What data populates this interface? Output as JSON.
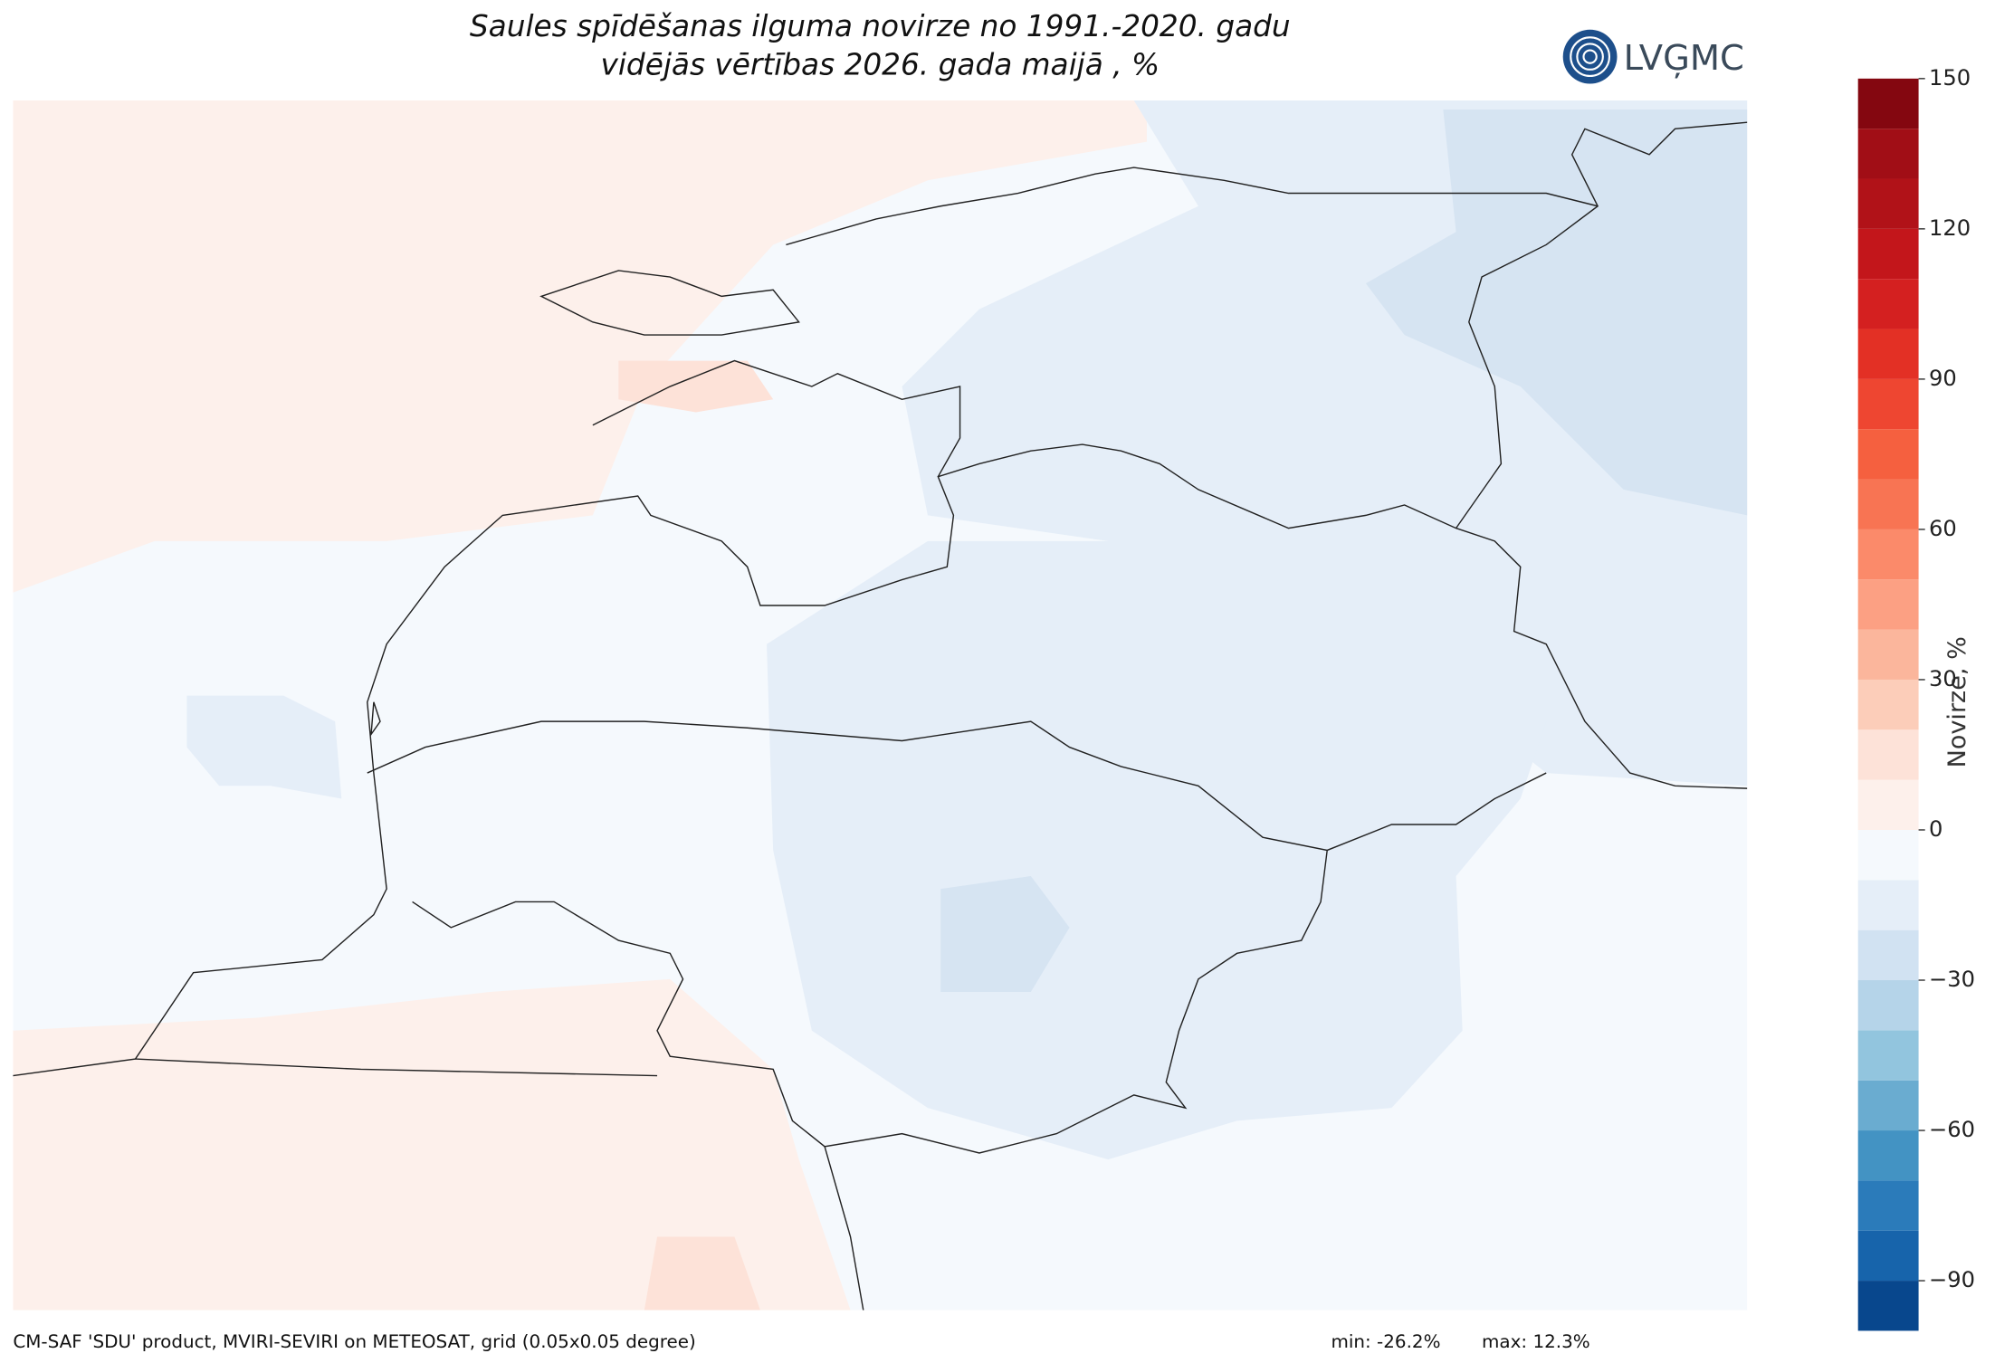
{
  "title_lines": [
    "Saules spīdēšanas ilguma novirze no 1991.-2020. gadu",
    "vidējās vērtības 2026. gada maijā , %"
  ],
  "logo": "LVĢMC",
  "colorbar": {
    "label": "Novirze, %",
    "lim": [
      -100,
      150
    ],
    "levels": [
      -100,
      -90,
      -80,
      -70,
      -60,
      -50,
      -40,
      -30,
      -20,
      -10,
      0,
      10,
      20,
      30,
      40,
      50,
      60,
      70,
      80,
      90,
      100,
      110,
      120,
      130,
      140,
      150
    ],
    "colors": [
      "#08478d",
      "#1764ab",
      "#2b7bba",
      "#4393c3",
      "#6aacd0",
      "#92c5de",
      "#b5d4e9",
      "#d1e2f2",
      "#e5eef8",
      "#f5f9fd",
      "#fdf0eb",
      "#fde2d8",
      "#fccdb9",
      "#fbb69c",
      "#fca083",
      "#fb8a6a",
      "#f87453",
      "#f5603f",
      "#ee4631",
      "#e33025",
      "#d42020",
      "#c3161b",
      "#b11218",
      "#a10e16",
      "#840710"
    ],
    "ticks": [
      150,
      120,
      90,
      60,
      30,
      0,
      {
        "value": -30,
        "label": "−30"
      },
      {
        "value": -60,
        "label": "−60"
      },
      {
        "value": -90,
        "label": "−90"
      }
    ]
  },
  "footer": {
    "source": "CM-SAF 'SDU' product, MVIRI-SEVIRI on METEOSAT, grid (0.05x0.05 degree)",
    "min": "min: -26.2%",
    "max": "max: 12.3%"
  }
}
